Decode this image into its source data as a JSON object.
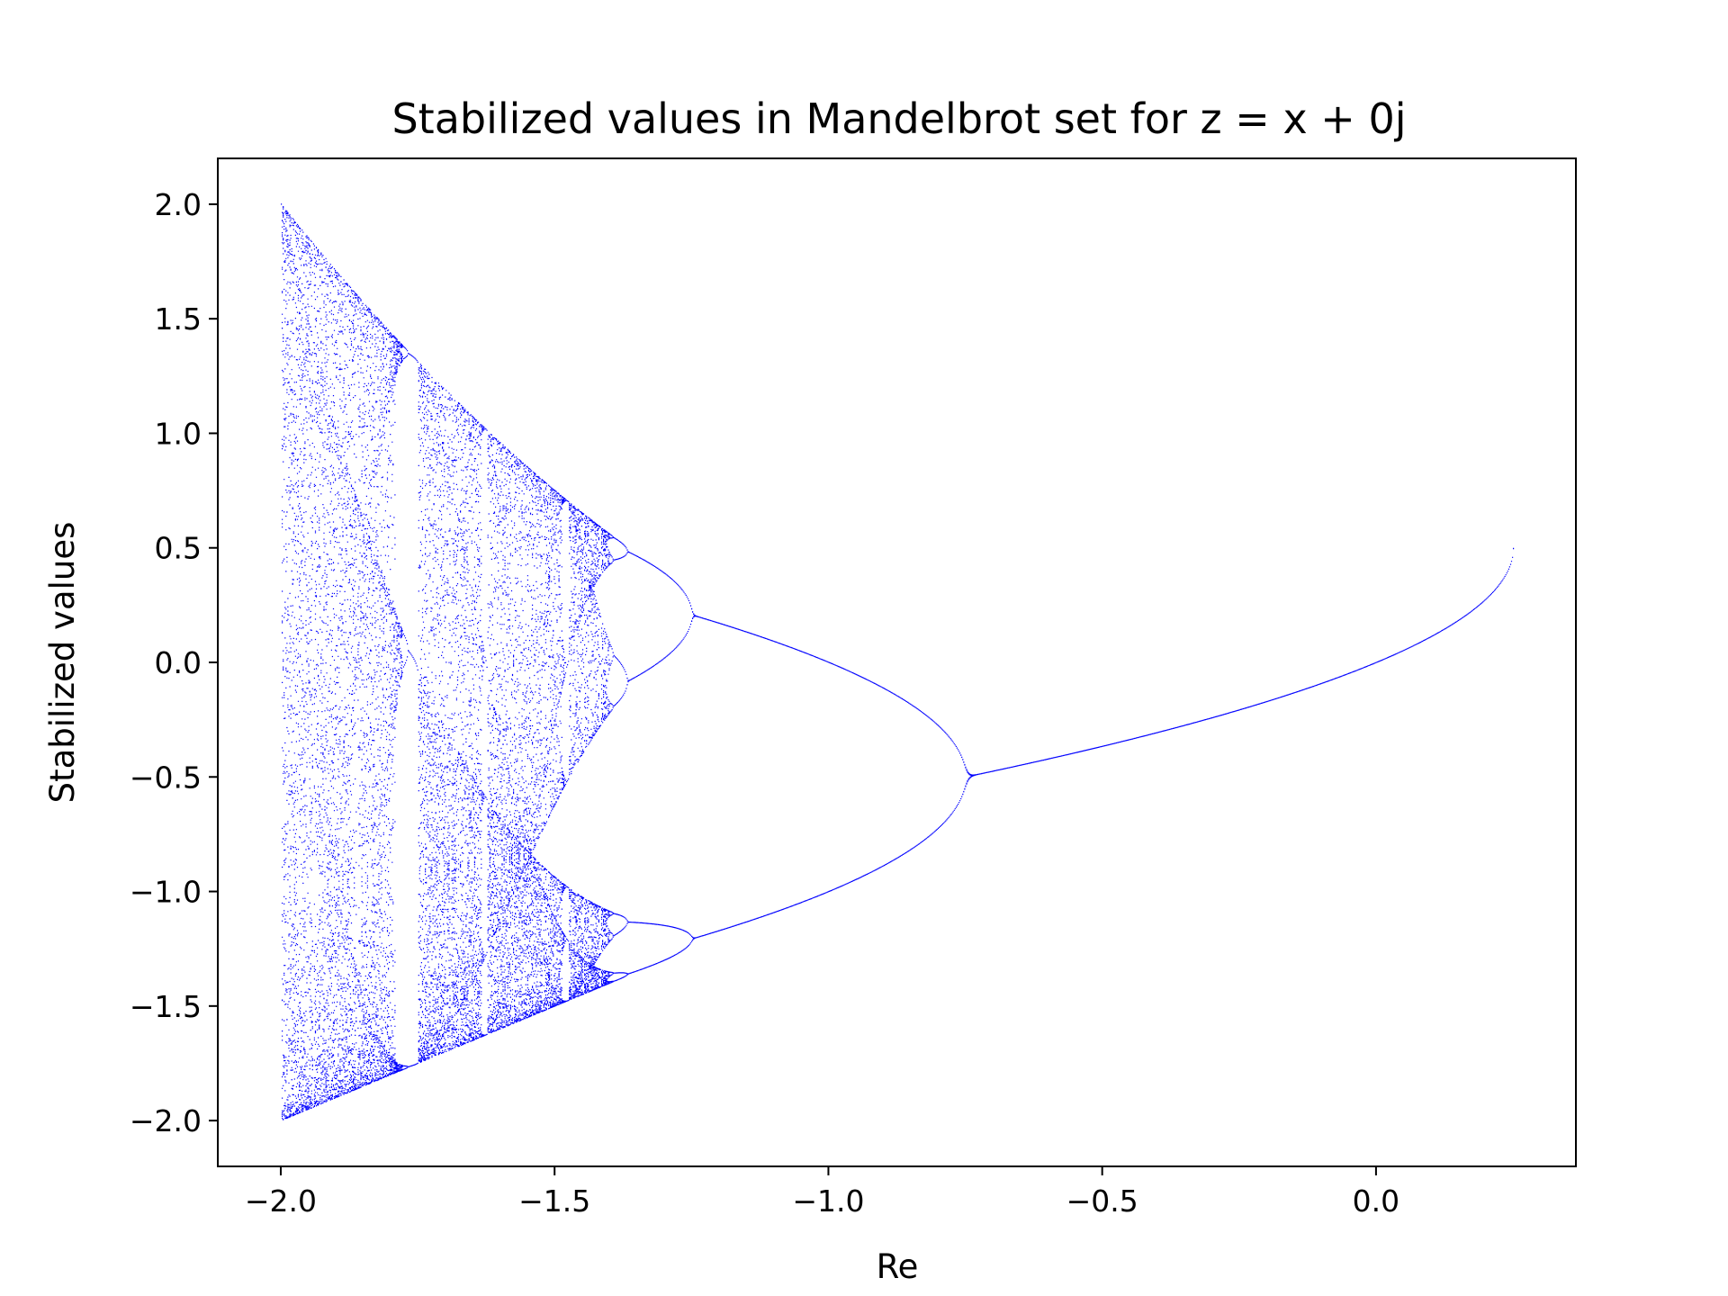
{
  "chart_data": {
    "type": "scatter",
    "title": "Stabilized values in Mandelbrot set for z = x + 0j",
    "xlabel": "Re",
    "ylabel": "Stabilized values",
    "xlim": [
      -2.115,
      0.365
    ],
    "ylim": [
      -2.2,
      2.2
    ],
    "x_ticks": [
      -2.0,
      -1.5,
      -1.0,
      -0.5,
      0.0
    ],
    "x_tick_labels": [
      "−2.0",
      "−1.5",
      "−1.0",
      "−0.5",
      "0.0"
    ],
    "y_ticks": [
      2.0,
      1.5,
      1.0,
      0.5,
      0.0,
      -0.5,
      -1.0,
      -1.5,
      -2.0
    ],
    "y_tick_labels": [
      "2.0",
      "1.5",
      "1.0",
      "0.5",
      "0.0",
      "−0.5",
      "−1.0",
      "−1.5",
      "−2.0"
    ],
    "x_range_of_points": [
      -2.0,
      0.25
    ],
    "marker_color": "#0000ff",
    "marker_size": "1 px",
    "grid": false,
    "legend": "none",
    "description": "Bifurcation diagram: for each real c, points are the values that the iteration z -> z^2 + c settles to after the transient; one branch for c in [-0.75, 0.25], period doubling to the left, chaos with windows down to c = -2."
  }
}
